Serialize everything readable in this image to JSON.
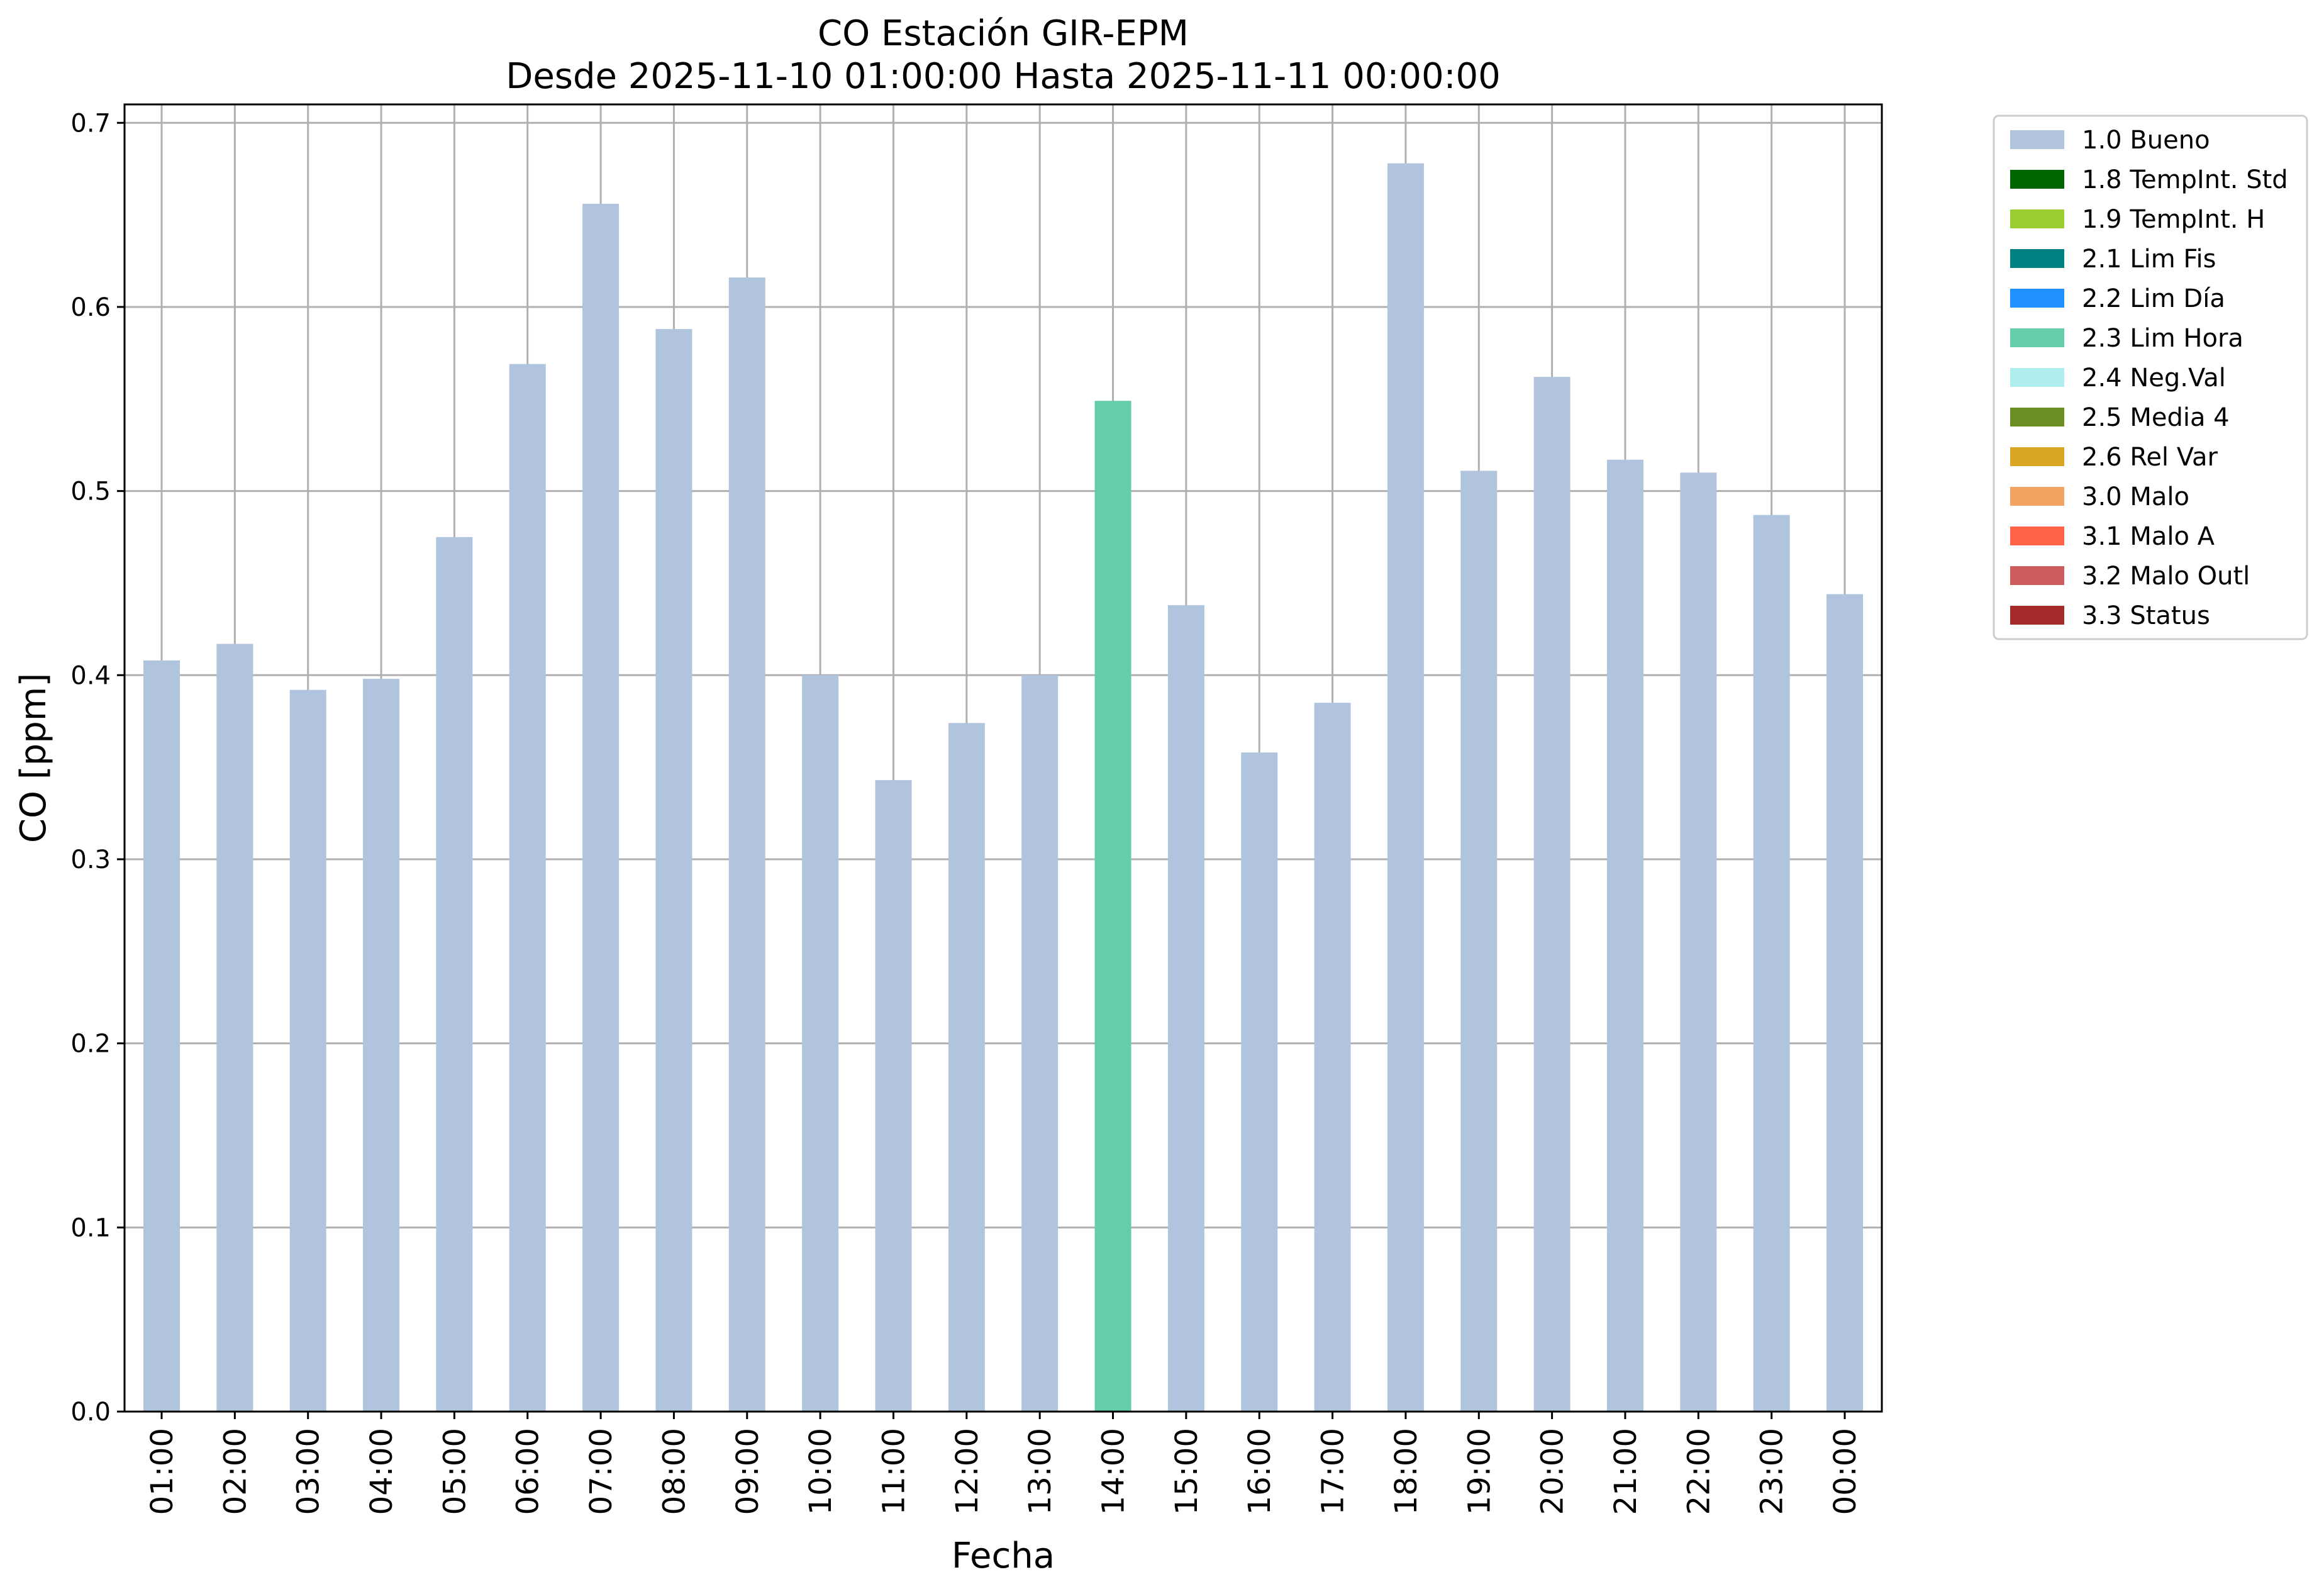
{
  "chart_data": {
    "type": "bar",
    "title": "CO Estación GIR-EPM",
    "subtitle": "Desde 2025-11-10 01:00:00 Hasta 2025-11-11 00:00:00",
    "xlabel": "Fecha",
    "ylabel": "CO [ppm]",
    "ylim": [
      0,
      0.71
    ],
    "yticks": [
      "0.0",
      "0.1",
      "0.2",
      "0.3",
      "0.4",
      "0.5",
      "0.6",
      "0.7"
    ],
    "grid": true,
    "legend_position": "outside top-right",
    "categories": [
      "01:00",
      "02:00",
      "03:00",
      "04:00",
      "05:00",
      "06:00",
      "07:00",
      "08:00",
      "09:00",
      "10:00",
      "11:00",
      "12:00",
      "13:00",
      "14:00",
      "15:00",
      "16:00",
      "17:00",
      "18:00",
      "19:00",
      "20:00",
      "21:00",
      "22:00",
      "23:00",
      "00:00"
    ],
    "values": [
      0.408,
      0.417,
      0.392,
      0.398,
      0.475,
      0.569,
      0.656,
      0.588,
      0.616,
      0.4,
      0.343,
      0.374,
      0.4,
      0.549,
      0.438,
      0.358,
      0.385,
      0.678,
      0.511,
      0.562,
      0.517,
      0.51,
      0.487,
      0.444
    ],
    "flags": [
      "1.0 Bueno",
      "1.0 Bueno",
      "1.0 Bueno",
      "1.0 Bueno",
      "1.0 Bueno",
      "1.0 Bueno",
      "1.0 Bueno",
      "1.0 Bueno",
      "1.0 Bueno",
      "1.0 Bueno",
      "1.0 Bueno",
      "1.0 Bueno",
      "1.0 Bueno",
      "2.3 Lim Hora",
      "1.0 Bueno",
      "1.0 Bueno",
      "1.0 Bueno",
      "1.0 Bueno",
      "1.0 Bueno",
      "1.0 Bueno",
      "1.0 Bueno",
      "1.0 Bueno",
      "1.0 Bueno",
      "1.0 Bueno"
    ],
    "legend": [
      {
        "label": "1.0 Bueno",
        "color": "#b0c4de"
      },
      {
        "label": "1.8 TempInt. Std",
        "color": "#006400"
      },
      {
        "label": "1.9 TempInt. H",
        "color": "#9acd32"
      },
      {
        "label": "2.1 Lim Fis",
        "color": "#008080"
      },
      {
        "label": "2.2 Lim Día",
        "color": "#1e90ff"
      },
      {
        "label": "2.3 Lim Hora",
        "color": "#66cdaa"
      },
      {
        "label": "2.4 Neg.Val",
        "color": "#afeeee"
      },
      {
        "label": "2.5 Media 4",
        "color": "#6b8e23"
      },
      {
        "label": "2.6 Rel Var",
        "color": "#daa520"
      },
      {
        "label": "3.0 Malo",
        "color": "#f4a460"
      },
      {
        "label": "3.1 Malo A",
        "color": "#ff6347"
      },
      {
        "label": "3.2 Malo Outl",
        "color": "#cd5c5c"
      },
      {
        "label": "3.3 Status",
        "color": "#a52a2a"
      }
    ]
  }
}
